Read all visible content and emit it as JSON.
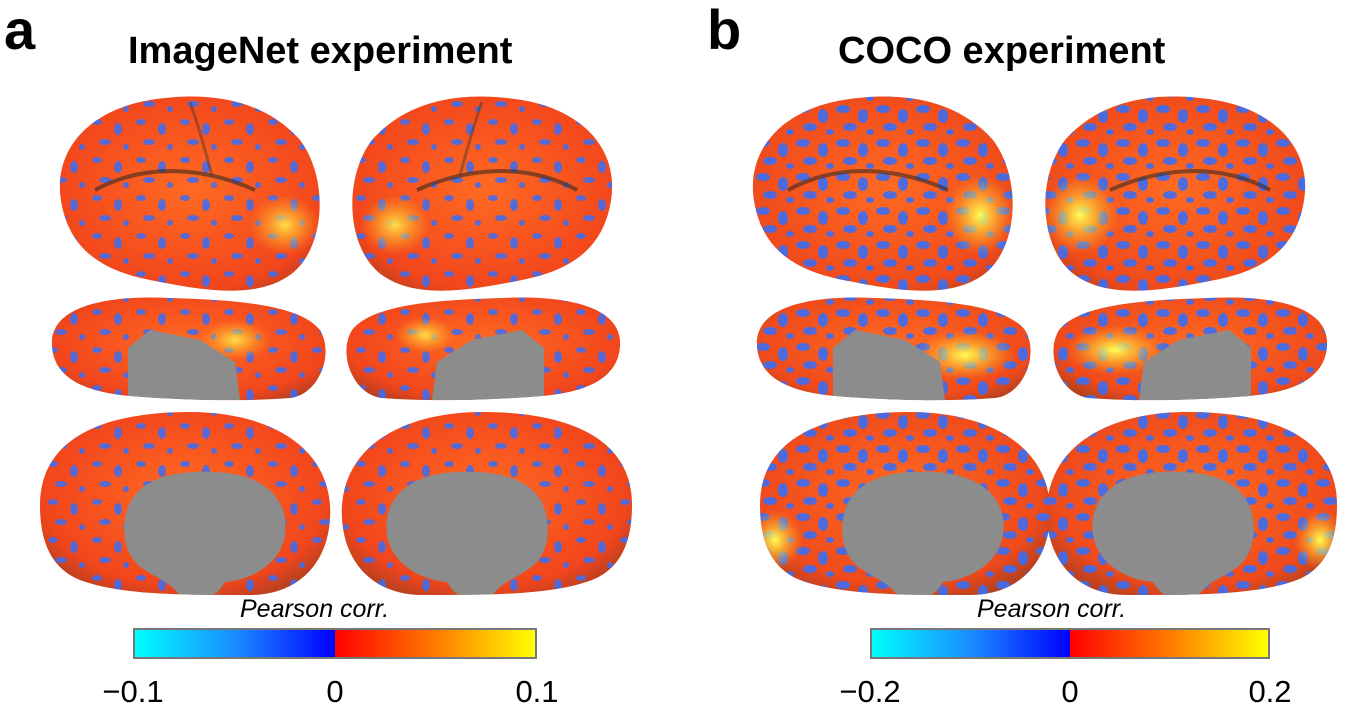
{
  "figure": {
    "colors": {
      "negative_low": "#00ffff",
      "negative_high": "#0000ff",
      "positive_low": "#ff0000",
      "positive_high": "#ffff00",
      "medial_wall": "#8c8c8c",
      "blob_blue": "#3b6df2"
    },
    "panels": [
      {
        "letter": "a",
        "title": "ImageNet experiment",
        "views": [
          "lateral-left",
          "lateral-right",
          "ventral-left",
          "ventral-right",
          "medial-left",
          "medial-right"
        ],
        "colorbar": {
          "label": "Pearson corr.",
          "ticks": [
            "−0.1",
            "0",
            "0.1"
          ],
          "range": [
            -0.1,
            0.1
          ]
        }
      },
      {
        "letter": "b",
        "title": "COCO experiment",
        "views": [
          "lateral-left",
          "lateral-right",
          "ventral-left",
          "ventral-right",
          "medial-left",
          "medial-right"
        ],
        "colorbar": {
          "label": "Pearson corr.",
          "ticks": [
            "−0.2",
            "0",
            "0.2"
          ],
          "range": [
            -0.2,
            0.2
          ]
        }
      }
    ]
  }
}
